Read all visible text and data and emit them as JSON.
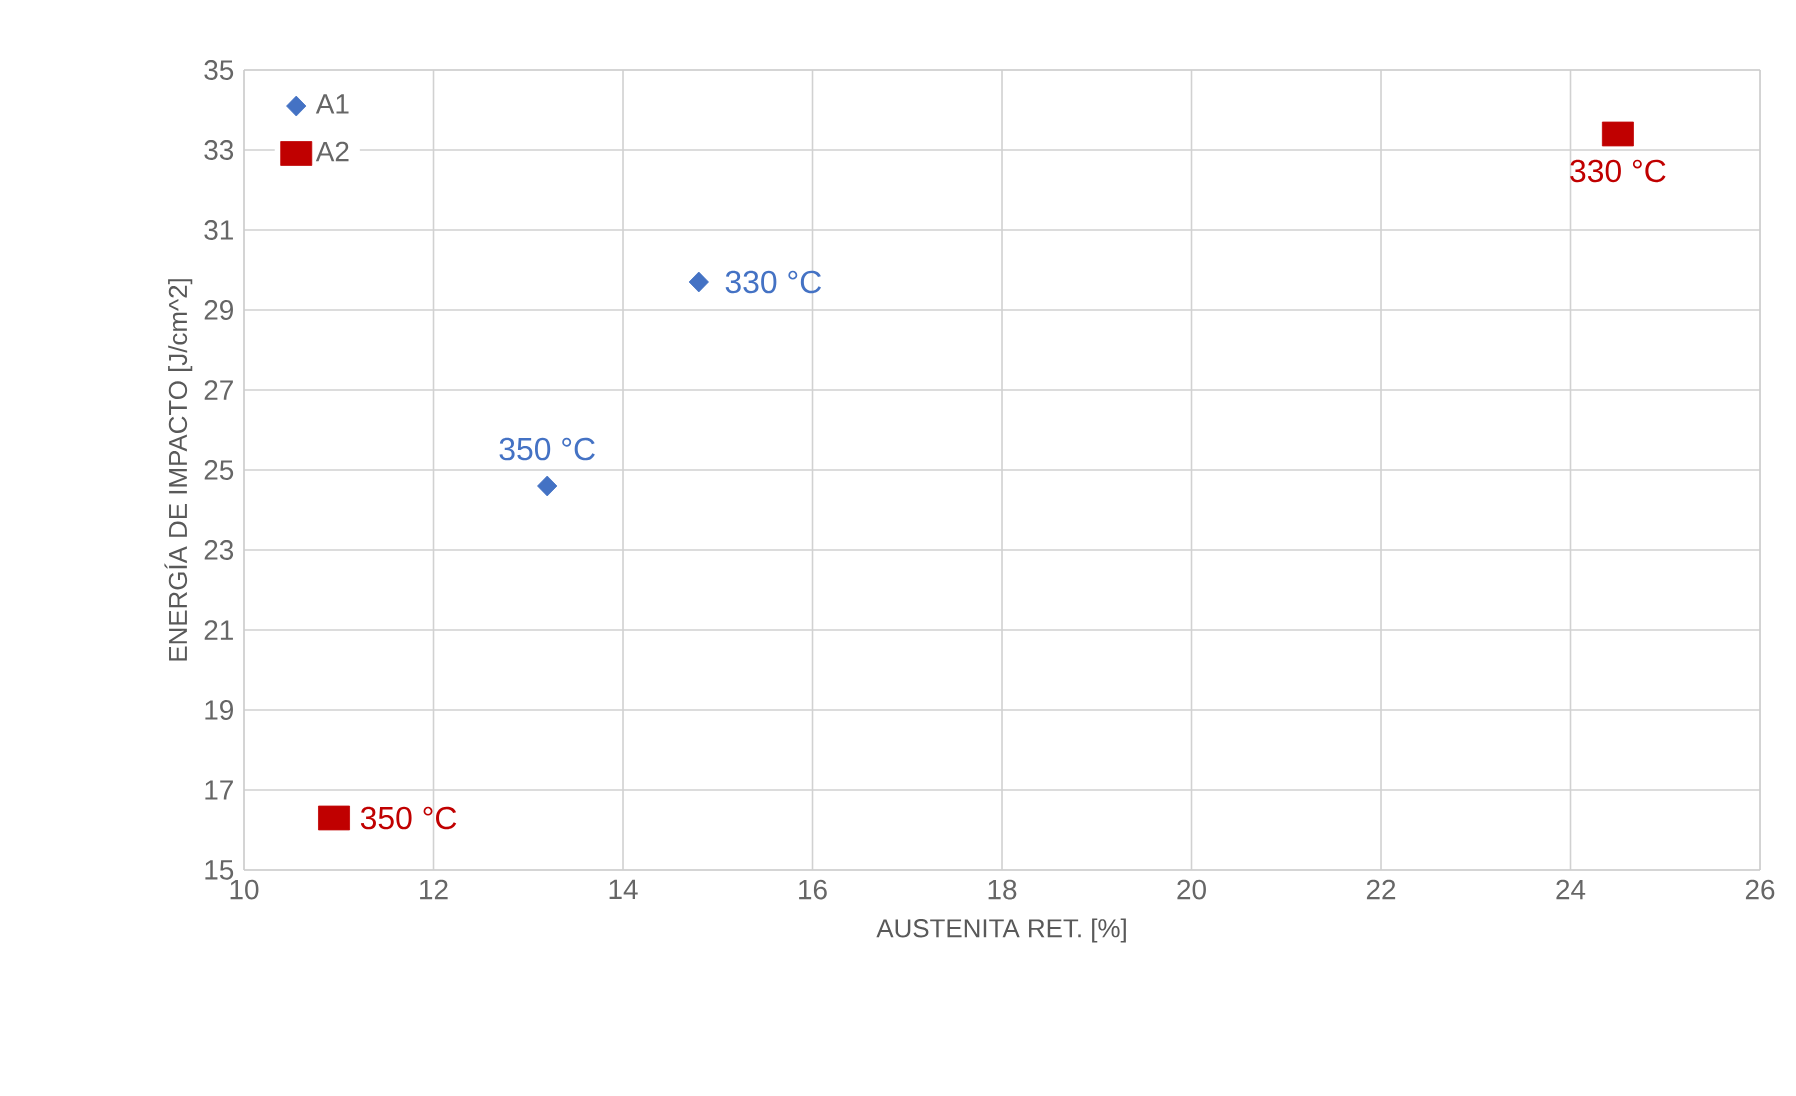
{
  "chart_data": {
    "type": "scatter",
    "xlabel": "AUSTENITA RET. [%]",
    "ylabel": "ENERGÍA DE IMPACTO [J/cm^2]",
    "xlim": [
      10,
      26
    ],
    "xticks": [
      10,
      12,
      14,
      16,
      18,
      20,
      22,
      24,
      26
    ],
    "ylim": [
      15,
      35
    ],
    "yticks": [
      15,
      17,
      19,
      21,
      23,
      25,
      27,
      29,
      31,
      33,
      35
    ],
    "grid": true,
    "legend": "top left",
    "series": [
      {
        "name": "A1",
        "color": "#4472c4",
        "marker": "diamond",
        "x": [
          14.8,
          13.2
        ],
        "values": [
          29.7,
          24.6
        ]
      },
      {
        "name": "A2",
        "color": "#c00000",
        "marker": "square",
        "x": [
          24.5,
          10.95
        ],
        "values": [
          33.4,
          16.3
        ]
      }
    ],
    "annotations": [
      {
        "text": "330 °C",
        "x": 14.8,
        "y": 29.7
      },
      {
        "text": "350 °C",
        "x": 13.2,
        "y": 24.6
      },
      {
        "text": "330 °C",
        "x": 24.5,
        "y": 33.4
      },
      {
        "text": "350 °C",
        "x": 10.95,
        "y": 16.3
      }
    ]
  }
}
